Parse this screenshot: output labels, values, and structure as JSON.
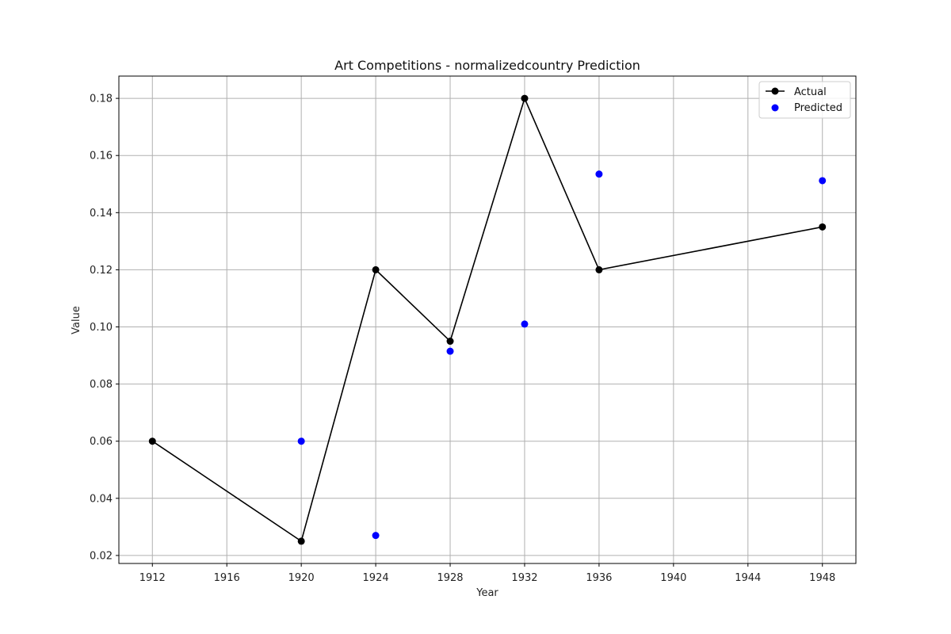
{
  "chart_data": {
    "type": "line",
    "title": "Art Competitions - normalizedcountry Prediction",
    "xlabel": "Year",
    "ylabel": "Value",
    "xlim": [
      1910.2,
      1949.8
    ],
    "ylim": [
      0.0172,
      0.1878
    ],
    "x_ticks": [
      1912,
      1916,
      1920,
      1924,
      1928,
      1932,
      1936,
      1940,
      1944,
      1948
    ],
    "y_ticks": [
      "0.02",
      "0.04",
      "0.06",
      "0.08",
      "0.10",
      "0.12",
      "0.14",
      "0.16",
      "0.18"
    ],
    "grid": true,
    "legend_position": "top-right",
    "series": [
      {
        "name": "Actual",
        "kind": "line",
        "color": "#000000",
        "x": [
          1912,
          1920,
          1924,
          1928,
          1932,
          1936,
          1948
        ],
        "y": [
          0.06,
          0.025,
          0.12,
          0.095,
          0.18,
          0.12,
          0.135
        ]
      },
      {
        "name": "Predicted",
        "kind": "scatter",
        "color": "#0000ff",
        "x": [
          1920,
          1924,
          1928,
          1932,
          1936,
          1948
        ],
        "y": [
          0.06,
          0.027,
          0.0915,
          0.101,
          0.1535,
          0.1512
        ]
      }
    ]
  }
}
